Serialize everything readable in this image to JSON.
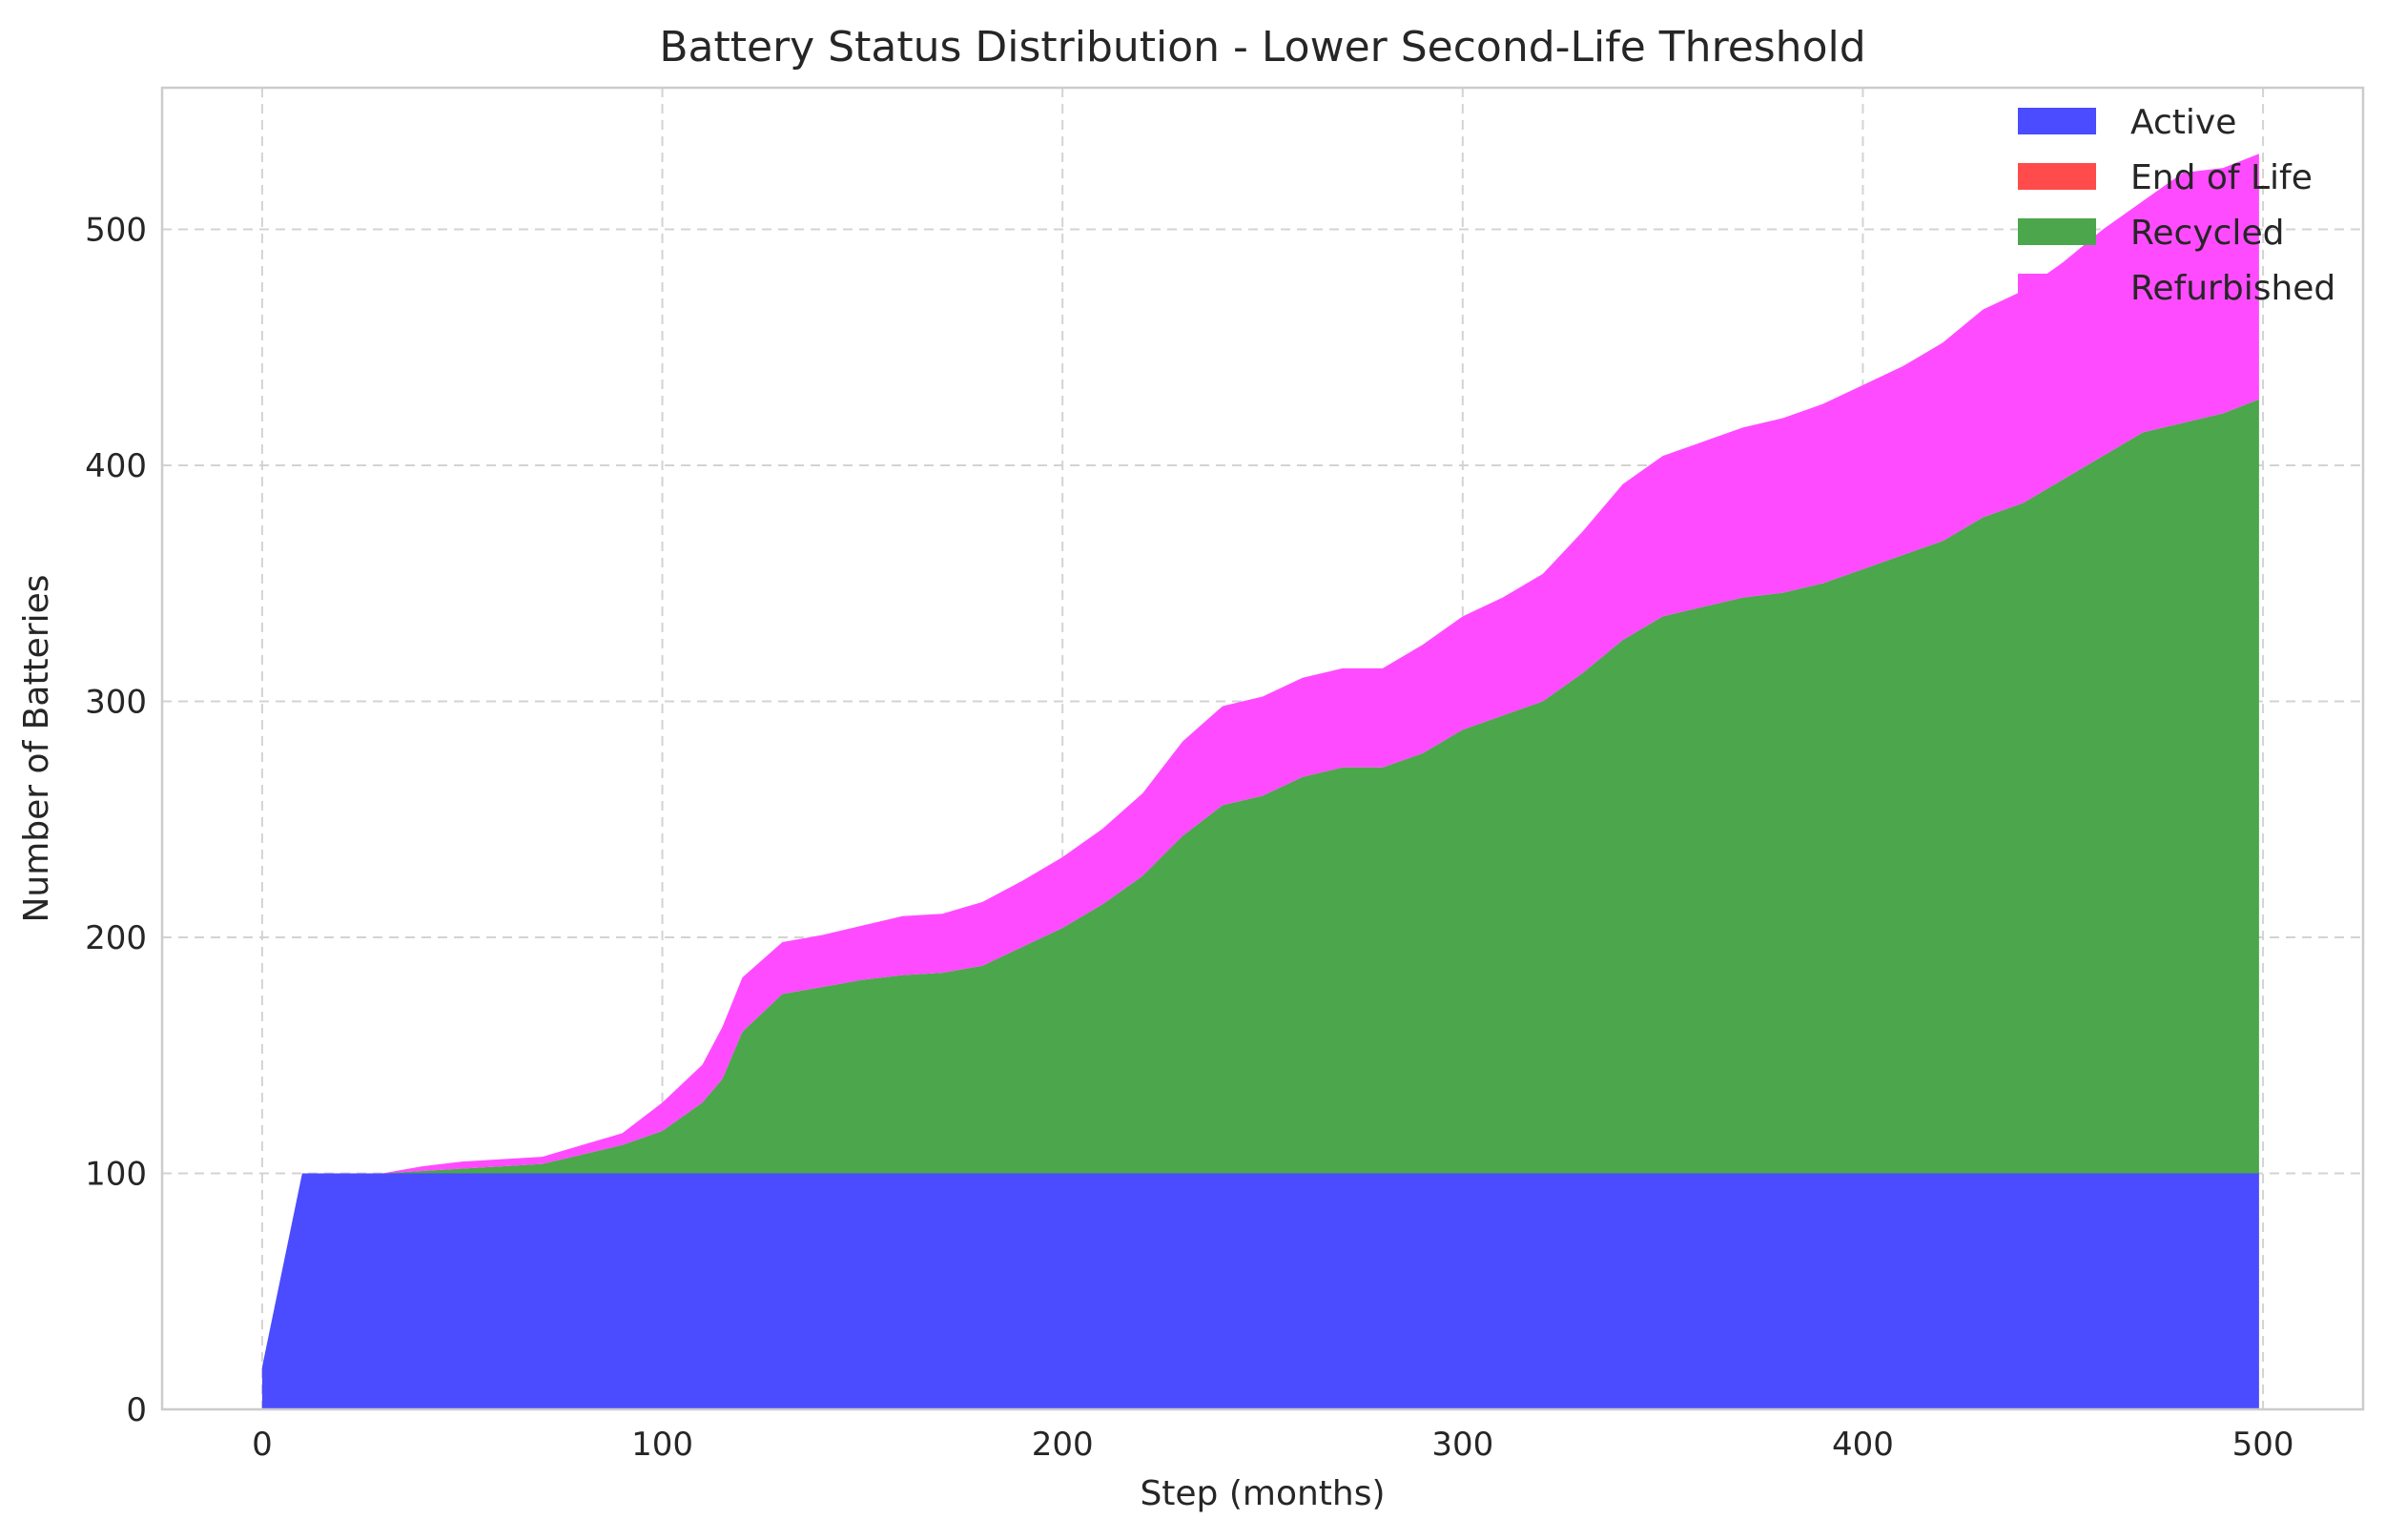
{
  "chart_data": {
    "type": "area",
    "stacked": true,
    "title": "Battery Status Distribution - Lower Second-Life Threshold",
    "xlabel": "Step (months)",
    "ylabel": "Number of Batteries",
    "xlim": [
      -25,
      525
    ],
    "ylim": [
      0,
      560
    ],
    "xticks": [
      0,
      100,
      200,
      300,
      400,
      500
    ],
    "yticks": [
      0,
      100,
      200,
      300,
      400,
      500
    ],
    "grid": true,
    "legend_position": "top-right",
    "x": [
      0,
      10,
      20,
      30,
      40,
      50,
      60,
      70,
      80,
      90,
      100,
      110,
      115,
      120,
      130,
      140,
      150,
      160,
      170,
      180,
      190,
      200,
      210,
      220,
      230,
      240,
      250,
      260,
      270,
      280,
      290,
      300,
      310,
      320,
      330,
      340,
      350,
      360,
      370,
      380,
      390,
      400,
      410,
      420,
      430,
      440,
      450,
      460,
      470,
      480,
      490,
      499
    ],
    "series": [
      {
        "name": "Active",
        "color": "#4b4bff",
        "values": [
          18,
          100,
          100,
          100,
          100,
          100,
          100,
          100,
          100,
          100,
          100,
          100,
          100,
          100,
          100,
          100,
          100,
          100,
          100,
          100,
          100,
          100,
          100,
          100,
          100,
          100,
          100,
          100,
          100,
          100,
          100,
          100,
          100,
          100,
          100,
          100,
          100,
          100,
          100,
          100,
          100,
          100,
          100,
          100,
          100,
          100,
          100,
          100,
          100,
          100,
          100,
          100
        ]
      },
      {
        "name": "End of Life",
        "color": "#ff4b4b",
        "values": [
          0,
          0,
          0,
          0,
          0,
          0,
          0,
          0,
          0,
          0,
          0,
          0,
          0,
          0,
          0,
          0,
          0,
          0,
          0,
          0,
          0,
          0,
          0,
          0,
          0,
          0,
          0,
          0,
          0,
          0,
          0,
          0,
          0,
          0,
          0,
          0,
          0,
          0,
          0,
          0,
          0,
          0,
          0,
          0,
          0,
          0,
          0,
          0,
          0,
          0,
          0,
          0
        ]
      },
      {
        "name": "Recycled",
        "color": "#4ca64c",
        "values": [
          0,
          0,
          0,
          0,
          1,
          2,
          3,
          4,
          8,
          12,
          18,
          30,
          40,
          60,
          76,
          79,
          82,
          84,
          85,
          88,
          96,
          104,
          114,
          126,
          143,
          156,
          160,
          168,
          172,
          172,
          178,
          188,
          194,
          200,
          212,
          226,
          236,
          240,
          244,
          246,
          250,
          256,
          262,
          268,
          278,
          284,
          294,
          304,
          314,
          318,
          322,
          328
        ]
      },
      {
        "name": "Refurbished",
        "color": "#ff4bff",
        "values": [
          0,
          0,
          0,
          0,
          2,
          3,
          3,
          3,
          4,
          5,
          12,
          16,
          22,
          23,
          22,
          22,
          23,
          25,
          25,
          27,
          28,
          30,
          32,
          35,
          40,
          42,
          42,
          42,
          42,
          42,
          46,
          48,
          50,
          54,
          60,
          66,
          68,
          70,
          72,
          74,
          76,
          78,
          80,
          84,
          88,
          90,
          92,
          96,
          98,
          106,
          104,
          104
        ]
      }
    ]
  }
}
